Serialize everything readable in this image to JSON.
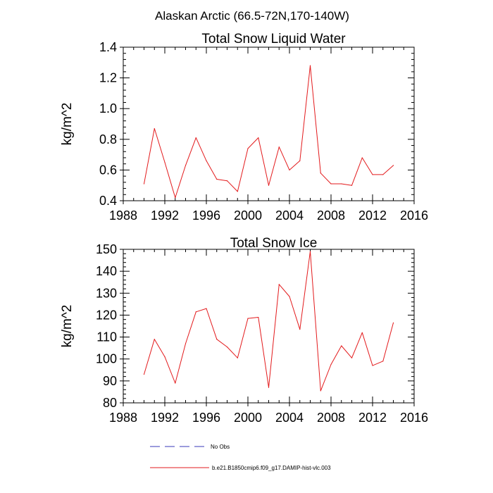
{
  "figure_title": "Alaskan Arctic (66.5-72N,170-140W)",
  "legend": [
    {
      "label": "No Obs",
      "color": "#3a3ab8",
      "style": "dashed"
    },
    {
      "label": "b.e21.B1850cmip6.f09_g17.DAMIP-hist-vlc.003",
      "color": "#e31a1c",
      "style": "solid"
    }
  ],
  "chart_data": [
    {
      "type": "line",
      "title": "Total Snow Liquid Water",
      "xlabel": "",
      "ylabel": "kg/m^2",
      "xlim": [
        1988,
        2016
      ],
      "ylim": [
        0.4,
        1.4
      ],
      "xticks": [
        1988,
        1992,
        1996,
        2000,
        2004,
        2008,
        2012,
        2016
      ],
      "yticks": [
        0.4,
        0.6,
        0.8,
        1.0,
        1.2,
        1.4
      ],
      "ytick_labels": [
        "0.4",
        "0.6",
        "0.8",
        "1.0",
        "1.2",
        "1.4"
      ],
      "grid": false,
      "x": [
        1990,
        1991,
        1992,
        1993,
        1994,
        1995,
        1996,
        1997,
        1998,
        1999,
        2000,
        2001,
        2002,
        2003,
        2004,
        2005,
        2006,
        2007,
        2008,
        2009,
        2010,
        2011,
        2012,
        2013,
        2014
      ],
      "series": [
        {
          "name": "b.e21.B1850cmip6.f09_g17.DAMIP-hist-vlc.003",
          "color": "#e31a1c",
          "values": [
            0.51,
            0.87,
            0.65,
            0.42,
            0.63,
            0.81,
            0.66,
            0.54,
            0.53,
            0.46,
            0.74,
            0.81,
            0.5,
            0.75,
            0.6,
            0.66,
            1.28,
            0.58,
            0.51,
            0.51,
            0.5,
            0.68,
            0.57,
            0.57,
            0.63
          ]
        }
      ]
    },
    {
      "type": "line",
      "title": "Total Snow Ice",
      "xlabel": "",
      "ylabel": "kg/m^2",
      "xlim": [
        1988,
        2016
      ],
      "ylim": [
        80,
        150
      ],
      "xticks": [
        1988,
        1992,
        1996,
        2000,
        2004,
        2008,
        2012,
        2016
      ],
      "yticks": [
        80,
        90,
        100,
        110,
        120,
        130,
        140,
        150
      ],
      "ytick_labels": [
        "80",
        "90",
        "100",
        "110",
        "120",
        "130",
        "140",
        "150"
      ],
      "grid": false,
      "x": [
        1990,
        1991,
        1992,
        1993,
        1994,
        1995,
        1996,
        1997,
        1998,
        1999,
        2000,
        2001,
        2002,
        2003,
        2004,
        2005,
        2006,
        2007,
        2008,
        2009,
        2010,
        2011,
        2012,
        2013,
        2014
      ],
      "series": [
        {
          "name": "b.e21.B1850cmip6.f09_g17.DAMIP-hist-vlc.003",
          "color": "#e31a1c",
          "values": [
            93,
            109,
            101,
            89,
            107,
            121.5,
            123,
            109,
            105.5,
            100.5,
            118.5,
            119,
            87,
            134,
            128.5,
            113.5,
            149,
            85.5,
            97.5,
            106,
            100.5,
            112,
            97,
            99,
            116.5
          ]
        }
      ]
    }
  ]
}
